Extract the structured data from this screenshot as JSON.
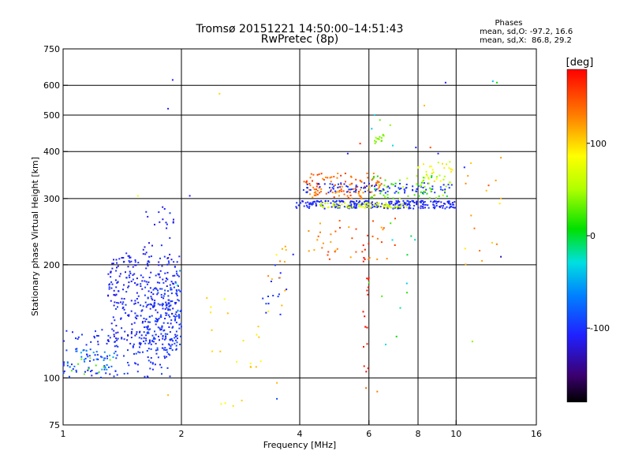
{
  "header": {
    "title_line1": "Tromsø 20151221 14:50:00–14:51:43",
    "title_line2": "RwPretec (8p)",
    "phases_title": "Phases",
    "phases_line1": "mean, sd,O: -97.2, 16.6",
    "phases_line2": "mean, sd,X:  86.8, 29.2"
  },
  "colorbar": {
    "unit_label": "[deg]",
    "tick_labels": [
      "100",
      "0",
      "-100"
    ],
    "tick_values": [
      100,
      0,
      -100
    ],
    "range": [
      -180,
      180
    ]
  },
  "chart_data": {
    "type": "scatter",
    "title": "Tromsø 20151221 14:50:00–14:51:43",
    "subtitle": "RwPretec (8p)",
    "xlabel": "Frequency [MHz]",
    "ylabel": "Stationary phase Virtual Height [km]",
    "x_scale": "log",
    "y_scale": "log",
    "xlim": [
      1,
      16
    ],
    "ylim": [
      75,
      750
    ],
    "x_ticks": [
      1,
      2,
      4,
      6,
      8,
      10,
      16
    ],
    "x_tick_labels": [
      "1",
      "2",
      "4",
      "6",
      "8",
      "10",
      "16"
    ],
    "y_ticks": [
      75,
      100,
      200,
      300,
      400,
      500,
      600,
      750
    ],
    "y_tick_labels": [
      "75",
      "100",
      "200",
      "300",
      "400",
      "500",
      "600",
      "750"
    ],
    "x_gridlines": [
      2,
      4,
      6,
      8,
      10
    ],
    "y_gridlines": [
      100,
      200,
      300,
      400,
      500,
      600
    ],
    "grid": true,
    "color_encoding": "phase [deg], rainbow colormap from -180 (black) to 180 (red)",
    "groups": [
      {
        "f": [
          1.0,
          1.9
        ],
        "h": [
          100,
          135
        ],
        "phase": [
          -110,
          -90
        ],
        "n": 160
      },
      {
        "f": [
          1.02,
          1.35
        ],
        "h": [
          105,
          120
        ],
        "phase": [
          -75,
          -45
        ],
        "n": 28
      },
      {
        "f": [
          1.05,
          1.32
        ],
        "h": [
          101,
          113
        ],
        "phase": [
          10,
          40
        ],
        "n": 10
      },
      {
        "f": [
          1.3,
          2.0
        ],
        "h": [
          125,
          215
        ],
        "phase": [
          -120,
          -95
        ],
        "n": 320
      },
      {
        "f": [
          1.6,
          2.0
        ],
        "h": [
          118,
          175
        ],
        "phase": [
          -100,
          -90
        ],
        "n": 120
      },
      {
        "f": [
          1.6,
          1.95
        ],
        "h": [
          210,
          290
        ],
        "phase": [
          -120,
          -100
        ],
        "n": 22
      },
      {
        "f": [
          1.9,
          2.0
        ],
        "h": [
          150,
          200
        ],
        "phase": [
          -60,
          -30
        ],
        "n": 4
      },
      {
        "f": [
          2.4,
          3.0
        ],
        "h": [
          82,
          95
        ],
        "phase": [
          80,
          110
        ],
        "n": 4
      },
      {
        "f": [
          2.3,
          3.3
        ],
        "h": [
          105,
          165
        ],
        "phase": [
          80,
          110
        ],
        "n": 16
      },
      {
        "f": [
          3.2,
          3.7
        ],
        "h": [
          145,
          200
        ],
        "phase": [
          -110,
          -90
        ],
        "n": 14
      },
      {
        "f": [
          3.3,
          3.8
        ],
        "h": [
          150,
          225
        ],
        "phase": [
          80,
          130
        ],
        "n": 12
      },
      {
        "f": [
          3.9,
          10.0
        ],
        "h": [
          282,
          296
        ],
        "phase": [
          -115,
          -95
        ],
        "n": 260
      },
      {
        "f": [
          4.5,
          7.5
        ],
        "h": [
          283,
          292
        ],
        "phase": [
          50,
          80
        ],
        "n": 80
      },
      {
        "f": [
          4.1,
          6.5
        ],
        "h": [
          300,
          350
        ],
        "phase": [
          120,
          160
        ],
        "n": 120
      },
      {
        "f": [
          4.0,
          9.8
        ],
        "h": [
          310,
          330
        ],
        "phase": [
          -110,
          -90
        ],
        "n": 100
      },
      {
        "f": [
          6.0,
          9.5
        ],
        "h": [
          300,
          345
        ],
        "phase": [
          0,
          60
        ],
        "n": 60
      },
      {
        "f": [
          8.0,
          9.8
        ],
        "h": [
          330,
          380
        ],
        "phase": [
          50,
          100
        ],
        "n": 30
      },
      {
        "f": [
          4.2,
          7.0
        ],
        "h": [
          205,
          270
        ],
        "phase": [
          110,
          160
        ],
        "n": 40
      },
      {
        "f": [
          5.8,
          6.0
        ],
        "h": [
          100,
          230
        ],
        "phase": [
          170,
          180
        ],
        "n": 22
      },
      {
        "f": [
          6.2,
          6.7
        ],
        "h": [
          420,
          445
        ],
        "phase": [
          30,
          50
        ],
        "n": 14
      },
      {
        "f": [
          6.0,
          8.2
        ],
        "h": [
          120,
          270
        ],
        "phase": [
          -40,
          40
        ],
        "n": 12
      },
      {
        "f": [
          10.5,
          13.0
        ],
        "h": [
          200,
          390
        ],
        "phase": [
          90,
          140
        ],
        "n": 14
      }
    ],
    "points": [
      {
        "f": 1.9,
        "h": 620,
        "phase": -110
      },
      {
        "f": 1.85,
        "h": 520,
        "phase": -110
      },
      {
        "f": 2.5,
        "h": 570,
        "phase": 100
      },
      {
        "f": 2.1,
        "h": 305,
        "phase": -110
      },
      {
        "f": 1.55,
        "h": 305,
        "phase": 80
      },
      {
        "f": 1.85,
        "h": 90,
        "phase": 110
      },
      {
        "f": 9.4,
        "h": 610,
        "phase": -110
      },
      {
        "f": 12.4,
        "h": 615,
        "phase": -40
      },
      {
        "f": 12.7,
        "h": 610,
        "phase": 10
      },
      {
        "f": 6.2,
        "h": 500,
        "phase": -30
      },
      {
        "f": 6.4,
        "h": 485,
        "phase": 30
      },
      {
        "f": 6.8,
        "h": 470,
        "phase": 40
      },
      {
        "f": 5.3,
        "h": 395,
        "phase": -110
      },
      {
        "f": 5.7,
        "h": 420,
        "phase": 160
      },
      {
        "f": 6.1,
        "h": 460,
        "phase": -40
      },
      {
        "f": 8.3,
        "h": 530,
        "phase": 110
      },
      {
        "f": 8.6,
        "h": 410,
        "phase": 150
      },
      {
        "f": 5.9,
        "h": 94,
        "phase": 140
      },
      {
        "f": 6.3,
        "h": 92,
        "phase": 130
      },
      {
        "f": 3.5,
        "h": 88,
        "phase": -90
      },
      {
        "f": 3.5,
        "h": 97,
        "phase": 110
      },
      {
        "f": 11.0,
        "h": 125,
        "phase": 40
      },
      {
        "f": 13.0,
        "h": 210,
        "phase": -130
      },
      {
        "f": 13.0,
        "h": 300,
        "phase": 110
      },
      {
        "f": 3.85,
        "h": 213,
        "phase": -110
      },
      {
        "f": 3.1,
        "h": 107,
        "phase": 110
      },
      {
        "f": 3.0,
        "h": 107,
        "phase": 115
      },
      {
        "f": 12.1,
        "h": 325,
        "phase": 150
      },
      {
        "f": 13.0,
        "h": 385,
        "phase": 120
      },
      {
        "f": 6.9,
        "h": 415,
        "phase": -30
      },
      {
        "f": 7.9,
        "h": 410,
        "phase": -110
      },
      {
        "f": 10.5,
        "h": 363,
        "phase": -110
      },
      {
        "f": 9.0,
        "h": 395,
        "phase": -110
      }
    ]
  }
}
